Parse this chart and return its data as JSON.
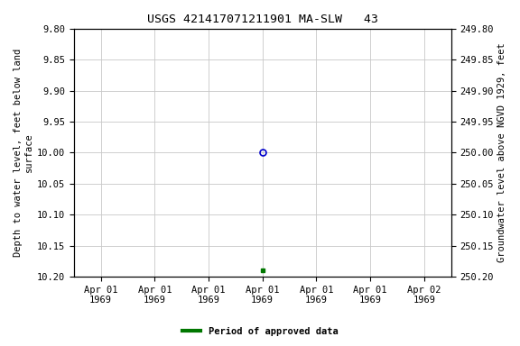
{
  "title": "USGS 421417071211901 MA-SLW   43",
  "ylabel_left": "Depth to water level, feet below land\nsurface",
  "ylabel_right": "Groundwater level above NGVD 1929, feet",
  "ylim_left": [
    9.8,
    10.2
  ],
  "ylim_right": [
    249.8,
    250.2
  ],
  "y_ticks_left": [
    9.8,
    9.85,
    9.9,
    9.95,
    10.0,
    10.05,
    10.1,
    10.15,
    10.2
  ],
  "y_ticks_right": [
    249.8,
    249.85,
    249.9,
    249.95,
    250.0,
    250.05,
    250.1,
    250.15,
    250.2
  ],
  "data_point_open": {
    "date": "1969-04-01",
    "y": 10.0
  },
  "data_point_closed": {
    "date": "1969-04-01",
    "y": 10.19
  },
  "open_marker_color": "#0000cc",
  "closed_marker_color": "#007700",
  "legend_label": "Period of approved data",
  "legend_color": "#007700",
  "background_color": "#ffffff",
  "grid_color": "#c8c8c8",
  "font_family": "monospace",
  "title_fontsize": 9.5,
  "axis_fontsize": 7.5,
  "tick_fontsize": 7.5
}
